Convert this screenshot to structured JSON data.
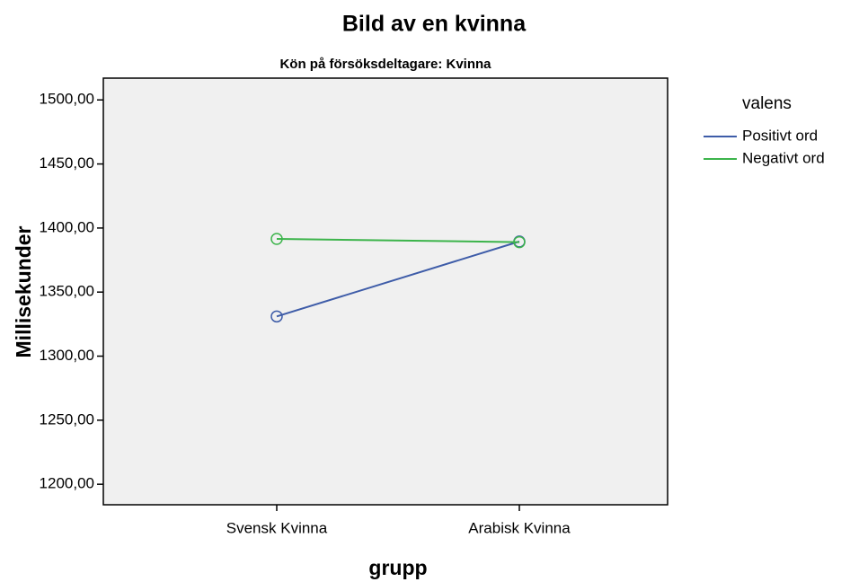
{
  "chart_data": {
    "type": "line",
    "title": "Bild av en kvinna",
    "subtitle": "Kön på försöksdeltagare: Kvinna",
    "x_label": "grupp",
    "y_label": "Millisekunder",
    "legend_title": "valens",
    "categories": [
      "Svensk Kvinna",
      "Arabisk Kvinna"
    ],
    "series": [
      {
        "name": "Positivt ord",
        "color": "#3e5ca8",
        "values": [
          1331,
          1389.5
        ]
      },
      {
        "name": "Negativt ord",
        "color": "#3cb44b",
        "values": [
          1391.5,
          1389
        ]
      }
    ],
    "ylim": [
      1184,
      1517
    ],
    "yticks": [
      {
        "value": 1200,
        "label": "1200,00"
      },
      {
        "value": 1250,
        "label": "1250,00"
      },
      {
        "value": 1300,
        "label": "1300,00"
      },
      {
        "value": 1350,
        "label": "1350,00"
      },
      {
        "value": 1400,
        "label": "1400,00"
      },
      {
        "value": 1450,
        "label": "1450,00"
      },
      {
        "value": 1500,
        "label": "1500,00"
      }
    ],
    "legend_position": "right",
    "markers": "open-circle"
  }
}
